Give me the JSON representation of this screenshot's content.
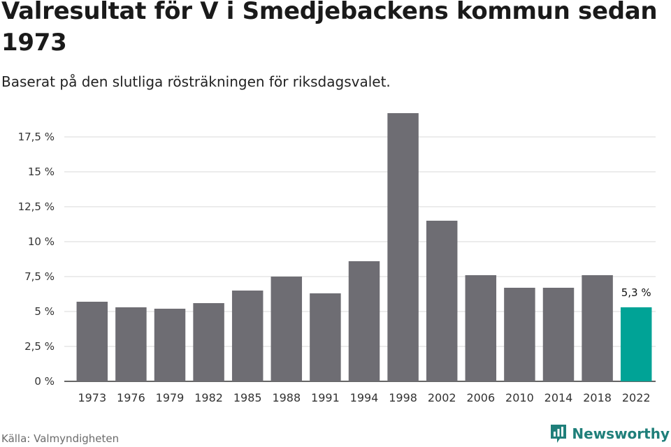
{
  "title": "Valresultat för V i Smedjebackens kommun sedan 1973",
  "subtitle": "Baserat på den slutliga rösträkningen för riksdagsvalet.",
  "source": "Källa: Valmyndigheten",
  "brand": {
    "name": "Newsworthy",
    "logo_icon": "newsworthy-logo-icon"
  },
  "colors": {
    "bar": "#6e6d73",
    "highlight": "#00a396",
    "grid": "#d9d9d9",
    "axis": "#333333"
  },
  "chart_data": {
    "type": "bar",
    "categories": [
      "1973",
      "1976",
      "1979",
      "1982",
      "1985",
      "1988",
      "1991",
      "1994",
      "1998",
      "2002",
      "2006",
      "2010",
      "2014",
      "2018",
      "2022"
    ],
    "values": [
      5.7,
      5.3,
      5.2,
      5.6,
      6.5,
      7.5,
      6.3,
      8.6,
      19.2,
      11.5,
      7.6,
      6.7,
      6.7,
      7.6,
      5.3
    ],
    "highlight_index": 14,
    "data_labels": {
      "14": "5,3 %"
    },
    "y_ticks": [
      0,
      2.5,
      5,
      7.5,
      10,
      12.5,
      15,
      17.5
    ],
    "y_tick_labels": [
      "0 %",
      "2,5 %",
      "5 %",
      "7,5 %",
      "10 %",
      "12,5 %",
      "15 %",
      "17,5 %"
    ],
    "ylim": [
      0,
      20
    ],
    "grid": true,
    "xlabel": "",
    "ylabel": ""
  }
}
